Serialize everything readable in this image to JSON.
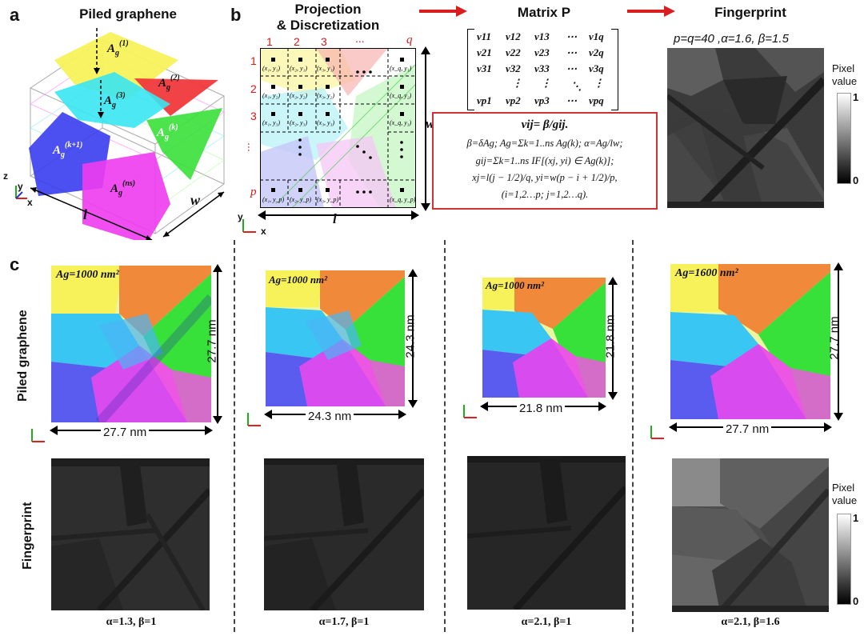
{
  "panel_a": {
    "label": "a",
    "title": "Piled graphene",
    "layers": [
      "A_g^(1)",
      "A_g^(2)",
      "A_g^(3)",
      "A_g^(k)",
      "A_g^(k+1)",
      "A_g^(ns)"
    ],
    "dims": {
      "l": "l",
      "w": "w"
    },
    "axes": {
      "z": "z",
      "y": "y",
      "x": "x"
    }
  },
  "panel_b": {
    "label": "b",
    "step1": "Projection",
    "step2": "& Discretization",
    "step3": "Matrix P",
    "step4": "Fingerprint",
    "col_labels": [
      "1",
      "2",
      "3",
      "...",
      "q"
    ],
    "row_labels": [
      "1",
      "2",
      "3",
      "...",
      "p"
    ],
    "dims": {
      "w": "w",
      "l": "l"
    },
    "axes": {
      "y": "y",
      "x": "x"
    },
    "matrix_rows": [
      [
        "v11",
        "v12",
        "v13",
        "⋯",
        "v1q"
      ],
      [
        "v21",
        "v22",
        "v23",
        "⋯",
        "v2q"
      ],
      [
        "v31",
        "v32",
        "v33",
        "⋯",
        "v3q"
      ],
      [
        "⋮",
        "⋮",
        "⋱",
        "",
        "⋮"
      ],
      [
        "vp1",
        "vp2",
        "vp3",
        "⋯",
        "vpq"
      ]
    ],
    "formulas": [
      "vij= β/gij.",
      "β=δAg; Ag=Σk=1..ns Ag(k); α=Ag/lw;",
      "gij=Σk=1..ns IF[(xj, yi) ∈ Ag(k)];",
      "xj=l(j − 1/2)/q, yi=w(p − i + 1/2)/p,",
      "(i=1,2…p; j=1,2…q)."
    ],
    "fingerprint_params": "p=q=40 ,α=1.6, β=1.5",
    "colorbar": {
      "title1": "Pixel",
      "title2": "value",
      "max": "1",
      "min": "0"
    }
  },
  "panel_c": {
    "label": "c",
    "row_labels": [
      "Piled graphene",
      "Fingerprint"
    ],
    "columns": [
      {
        "area": "Ag=1000 nm²",
        "size": "27.7 nm",
        "caption": "α=1.3, β=1"
      },
      {
        "area": "Ag=1000 nm²",
        "size": "24.3 nm",
        "caption": "α=1.7, β=1"
      },
      {
        "area": "Ag=1000 nm²",
        "size": "21.8 nm",
        "caption": "α=2.1, β=1"
      },
      {
        "area": "Ag=1600 nm²",
        "size": "27.7 nm",
        "caption": "α=2.1, β=1.6"
      }
    ],
    "colorbar": {
      "title1": "Pixel",
      "title2": "value",
      "max": "1",
      "min": "0"
    }
  },
  "colors": {
    "yellow": "#f7f25a",
    "red": "#f0393b",
    "cyan": "#39e6f2",
    "green": "#38e03a",
    "blue": "#3a3df0",
    "magenta": "#ee3bef",
    "arrow": "#d81e1e"
  }
}
